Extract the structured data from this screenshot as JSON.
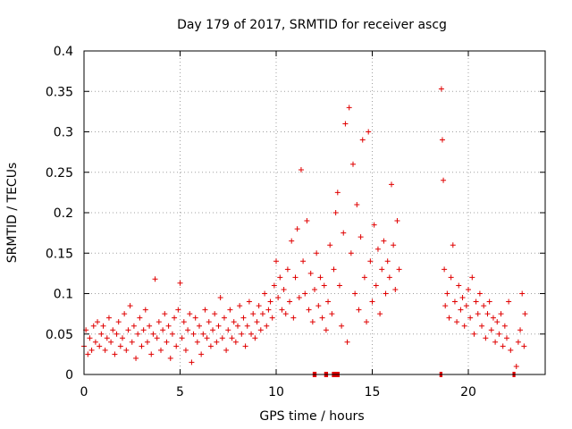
{
  "chart_data": {
    "type": "scatter",
    "title": "Day 179 of 2017, SRMTID for receiver ascg",
    "xlabel": "GPS time / hours",
    "ylabel": "SRMTID / TECUs",
    "xlim": [
      0,
      24
    ],
    "ylim": [
      0,
      0.4
    ],
    "x_ticks": [
      0,
      5,
      10,
      15,
      20
    ],
    "y_ticks": [
      0,
      0.05,
      0.1,
      0.15,
      0.2,
      0.25,
      0.3,
      0.35,
      0.4
    ],
    "x_tick_labels": [
      "0",
      "5",
      "10",
      "15",
      "20"
    ],
    "y_tick_labels": [
      "0",
      "0.05",
      "0.1",
      "0.15",
      "0.2",
      "0.25",
      "0.3",
      "0.35",
      "0.4"
    ],
    "grid": true,
    "marker": "+",
    "color": "#e00000",
    "zero_bands": [
      [
        11.9,
        12.1
      ],
      [
        12.5,
        12.7
      ],
      [
        12.9,
        13.3
      ],
      [
        18.5,
        18.65
      ],
      [
        22.3,
        22.45
      ]
    ],
    "series": [
      {
        "name": "SRMTID",
        "points": [
          [
            0.0,
            0.035
          ],
          [
            0.1,
            0.055
          ],
          [
            0.2,
            0.025
          ],
          [
            0.3,
            0.045
          ],
          [
            0.4,
            0.03
          ],
          [
            0.5,
            0.06
          ],
          [
            0.6,
            0.04
          ],
          [
            0.7,
            0.065
          ],
          [
            0.8,
            0.035
          ],
          [
            0.9,
            0.05
          ],
          [
            1.0,
            0.06
          ],
          [
            1.1,
            0.03
          ],
          [
            1.2,
            0.045
          ],
          [
            1.3,
            0.07
          ],
          [
            1.4,
            0.04
          ],
          [
            1.5,
            0.055
          ],
          [
            1.6,
            0.025
          ],
          [
            1.7,
            0.05
          ],
          [
            1.8,
            0.065
          ],
          [
            1.9,
            0.035
          ],
          [
            2.0,
            0.045
          ],
          [
            2.1,
            0.075
          ],
          [
            2.2,
            0.03
          ],
          [
            2.3,
            0.055
          ],
          [
            2.4,
            0.085
          ],
          [
            2.5,
            0.04
          ],
          [
            2.6,
            0.06
          ],
          [
            2.7,
            0.02
          ],
          [
            2.8,
            0.05
          ],
          [
            2.9,
            0.07
          ],
          [
            3.0,
            0.035
          ],
          [
            3.1,
            0.055
          ],
          [
            3.2,
            0.08
          ],
          [
            3.3,
            0.04
          ],
          [
            3.4,
            0.06
          ],
          [
            3.5,
            0.025
          ],
          [
            3.6,
            0.05
          ],
          [
            3.7,
            0.118
          ],
          [
            3.8,
            0.045
          ],
          [
            3.9,
            0.065
          ],
          [
            4.0,
            0.03
          ],
          [
            4.1,
            0.055
          ],
          [
            4.2,
            0.075
          ],
          [
            4.3,
            0.04
          ],
          [
            4.4,
            0.06
          ],
          [
            4.5,
            0.02
          ],
          [
            4.6,
            0.05
          ],
          [
            4.7,
            0.07
          ],
          [
            4.8,
            0.035
          ],
          [
            4.9,
            0.08
          ],
          [
            5.0,
            0.113
          ],
          [
            5.1,
            0.045
          ],
          [
            5.2,
            0.065
          ],
          [
            5.3,
            0.03
          ],
          [
            5.4,
            0.055
          ],
          [
            5.5,
            0.075
          ],
          [
            5.6,
            0.015
          ],
          [
            5.7,
            0.05
          ],
          [
            5.8,
            0.07
          ],
          [
            5.9,
            0.04
          ],
          [
            6.0,
            0.06
          ],
          [
            6.1,
            0.025
          ],
          [
            6.2,
            0.05
          ],
          [
            6.3,
            0.08
          ],
          [
            6.4,
            0.045
          ],
          [
            6.5,
            0.065
          ],
          [
            6.6,
            0.035
          ],
          [
            6.7,
            0.055
          ],
          [
            6.8,
            0.075
          ],
          [
            6.9,
            0.04
          ],
          [
            7.0,
            0.06
          ],
          [
            7.1,
            0.095
          ],
          [
            7.2,
            0.045
          ],
          [
            7.3,
            0.07
          ],
          [
            7.4,
            0.03
          ],
          [
            7.5,
            0.055
          ],
          [
            7.6,
            0.08
          ],
          [
            7.7,
            0.045
          ],
          [
            7.8,
            0.065
          ],
          [
            7.9,
            0.04
          ],
          [
            8.0,
            0.06
          ],
          [
            8.1,
            0.085
          ],
          [
            8.2,
            0.05
          ],
          [
            8.3,
            0.07
          ],
          [
            8.4,
            0.035
          ],
          [
            8.5,
            0.06
          ],
          [
            8.6,
            0.09
          ],
          [
            8.7,
            0.05
          ],
          [
            8.8,
            0.075
          ],
          [
            8.9,
            0.045
          ],
          [
            9.0,
            0.065
          ],
          [
            9.1,
            0.085
          ],
          [
            9.2,
            0.055
          ],
          [
            9.3,
            0.075
          ],
          [
            9.4,
            0.1
          ],
          [
            9.5,
            0.06
          ],
          [
            9.6,
            0.08
          ],
          [
            9.7,
            0.09
          ],
          [
            9.8,
            0.07
          ],
          [
            9.9,
            0.11
          ],
          [
            10.0,
            0.14
          ],
          [
            10.1,
            0.095
          ],
          [
            10.2,
            0.12
          ],
          [
            10.3,
            0.08
          ],
          [
            10.4,
            0.105
          ],
          [
            10.5,
            0.075
          ],
          [
            10.6,
            0.13
          ],
          [
            10.7,
            0.09
          ],
          [
            10.8,
            0.165
          ],
          [
            10.9,
            0.07
          ],
          [
            11.0,
            0.12
          ],
          [
            11.1,
            0.18
          ],
          [
            11.2,
            0.095
          ],
          [
            11.3,
            0.253
          ],
          [
            11.4,
            0.14
          ],
          [
            11.5,
            0.1
          ],
          [
            11.6,
            0.19
          ],
          [
            11.7,
            0.08
          ],
          [
            11.8,
            0.125
          ],
          [
            11.9,
            0.065
          ],
          [
            12.0,
            0.105
          ],
          [
            12.1,
            0.15
          ],
          [
            12.2,
            0.085
          ],
          [
            12.3,
            0.12
          ],
          [
            12.4,
            0.07
          ],
          [
            12.5,
            0.11
          ],
          [
            12.6,
            0.055
          ],
          [
            12.7,
            0.09
          ],
          [
            12.8,
            0.16
          ],
          [
            12.9,
            0.075
          ],
          [
            13.0,
            0.13
          ],
          [
            13.1,
            0.2
          ],
          [
            13.2,
            0.225
          ],
          [
            13.3,
            0.11
          ],
          [
            13.4,
            0.06
          ],
          [
            13.5,
            0.175
          ],
          [
            13.6,
            0.31
          ],
          [
            13.7,
            0.04
          ],
          [
            13.8,
            0.33
          ],
          [
            13.9,
            0.15
          ],
          [
            14.0,
            0.26
          ],
          [
            14.1,
            0.1
          ],
          [
            14.2,
            0.21
          ],
          [
            14.3,
            0.08
          ],
          [
            14.4,
            0.17
          ],
          [
            14.5,
            0.29
          ],
          [
            14.6,
            0.12
          ],
          [
            14.7,
            0.065
          ],
          [
            14.8,
            0.3
          ],
          [
            14.9,
            0.14
          ],
          [
            15.0,
            0.09
          ],
          [
            15.1,
            0.185
          ],
          [
            15.2,
            0.11
          ],
          [
            15.3,
            0.155
          ],
          [
            15.4,
            0.075
          ],
          [
            15.5,
            0.13
          ],
          [
            15.6,
            0.165
          ],
          [
            15.7,
            0.1
          ],
          [
            15.8,
            0.14
          ],
          [
            15.9,
            0.12
          ],
          [
            16.0,
            0.235
          ],
          [
            16.1,
            0.16
          ],
          [
            16.2,
            0.105
          ],
          [
            16.3,
            0.19
          ],
          [
            16.4,
            0.13
          ],
          [
            18.6,
            0.353
          ],
          [
            18.65,
            0.29
          ],
          [
            18.7,
            0.24
          ],
          [
            18.75,
            0.13
          ],
          [
            18.8,
            0.085
          ],
          [
            18.9,
            0.1
          ],
          [
            19.0,
            0.07
          ],
          [
            19.1,
            0.12
          ],
          [
            19.2,
            0.16
          ],
          [
            19.3,
            0.09
          ],
          [
            19.4,
            0.065
          ],
          [
            19.5,
            0.11
          ],
          [
            19.6,
            0.08
          ],
          [
            19.7,
            0.095
          ],
          [
            19.8,
            0.06
          ],
          [
            19.9,
            0.085
          ],
          [
            20.0,
            0.105
          ],
          [
            20.1,
            0.07
          ],
          [
            20.2,
            0.12
          ],
          [
            20.3,
            0.05
          ],
          [
            20.4,
            0.09
          ],
          [
            20.5,
            0.075
          ],
          [
            20.6,
            0.1
          ],
          [
            20.7,
            0.06
          ],
          [
            20.8,
            0.085
          ],
          [
            20.9,
            0.045
          ],
          [
            21.0,
            0.075
          ],
          [
            21.1,
            0.09
          ],
          [
            21.2,
            0.055
          ],
          [
            21.3,
            0.07
          ],
          [
            21.4,
            0.04
          ],
          [
            21.5,
            0.065
          ],
          [
            21.6,
            0.05
          ],
          [
            21.7,
            0.075
          ],
          [
            21.8,
            0.035
          ],
          [
            21.9,
            0.06
          ],
          [
            22.0,
            0.045
          ],
          [
            22.1,
            0.09
          ],
          [
            22.2,
            0.03
          ],
          [
            22.5,
            0.01
          ],
          [
            22.6,
            0.04
          ],
          [
            22.7,
            0.055
          ],
          [
            22.8,
            0.1
          ],
          [
            22.9,
            0.035
          ],
          [
            22.95,
            0.075
          ]
        ]
      }
    ]
  }
}
